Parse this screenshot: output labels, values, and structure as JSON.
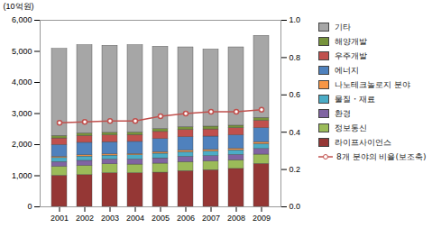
{
  "chart_data": {
    "type": "bar",
    "stacked": true,
    "y_label": "(10억원)",
    "categories": [
      "2001",
      "2002",
      "2003",
      "2004",
      "2005",
      "2006",
      "2007",
      "2008",
      "2009"
    ],
    "ylim": [
      0,
      6000
    ],
    "yticks": [
      0,
      {
        "value": 1000,
        "label": "1,000"
      },
      {
        "value": 2000,
        "label": "2,000"
      },
      {
        "value": 3000,
        "label": "3,000"
      },
      {
        "value": 4000,
        "label": "4,000"
      },
      {
        "value": 5000,
        "label": "5,000"
      },
      {
        "value": 6000,
        "label": "6,000"
      }
    ],
    "y2lim": [
      0,
      1
    ],
    "y2ticks": [
      {
        "value": 0,
        "label": "0.0"
      },
      0.2,
      0.4,
      0.6,
      0.8,
      {
        "value": 1,
        "label": "1.0"
      }
    ],
    "grid": false,
    "legend": "right",
    "series": [
      {
        "name": "라이프사이언스",
        "color": "#953735",
        "values": [
          1000,
          1020,
          1080,
          1080,
          1100,
          1150,
          1180,
          1220,
          1380
        ]
      },
      {
        "name": "정보통신",
        "color": "#9bbb59",
        "values": [
          290,
          300,
          290,
          280,
          290,
          290,
          280,
          280,
          300
        ]
      },
      {
        "name": "환경",
        "color": "#8064a2",
        "values": [
          150,
          160,
          150,
          160,
          170,
          170,
          170,
          170,
          180
        ]
      },
      {
        "name": "물질・재료",
        "color": "#4bacc6",
        "values": [
          130,
          140,
          130,
          140,
          150,
          150,
          150,
          150,
          160
        ]
      },
      {
        "name": "나노테크놀로지 분야",
        "color": "#f79646",
        "values": [
          40,
          40,
          40,
          40,
          50,
          50,
          50,
          50,
          60
        ]
      },
      {
        "name": "에너지",
        "color": "#4f81bd",
        "values": [
          380,
          400,
          390,
          390,
          420,
          430,
          430,
          430,
          450
        ]
      },
      {
        "name": "우주개발",
        "color": "#c0504d",
        "values": [
          210,
          220,
          220,
          220,
          230,
          230,
          230,
          230,
          240
        ]
      },
      {
        "name": "해양개발",
        "color": "#77933c",
        "values": [
          80,
          80,
          80,
          80,
          90,
          90,
          90,
          80,
          90
        ]
      },
      {
        "name": "기타",
        "color": "#a6a6a6",
        "values": [
          2800,
          2840,
          2800,
          2810,
          2650,
          2570,
          2480,
          2520,
          2640
        ]
      },
      {
        "name": "8개 분야의 비율(보조축)",
        "type": "line",
        "axis": "y2",
        "color": "#c0504d",
        "marker": "circle",
        "line_style": "solid",
        "values": [
          0.45,
          0.455,
          0.46,
          0.46,
          0.485,
          0.5,
          0.51,
          0.51,
          0.52
        ]
      }
    ]
  }
}
